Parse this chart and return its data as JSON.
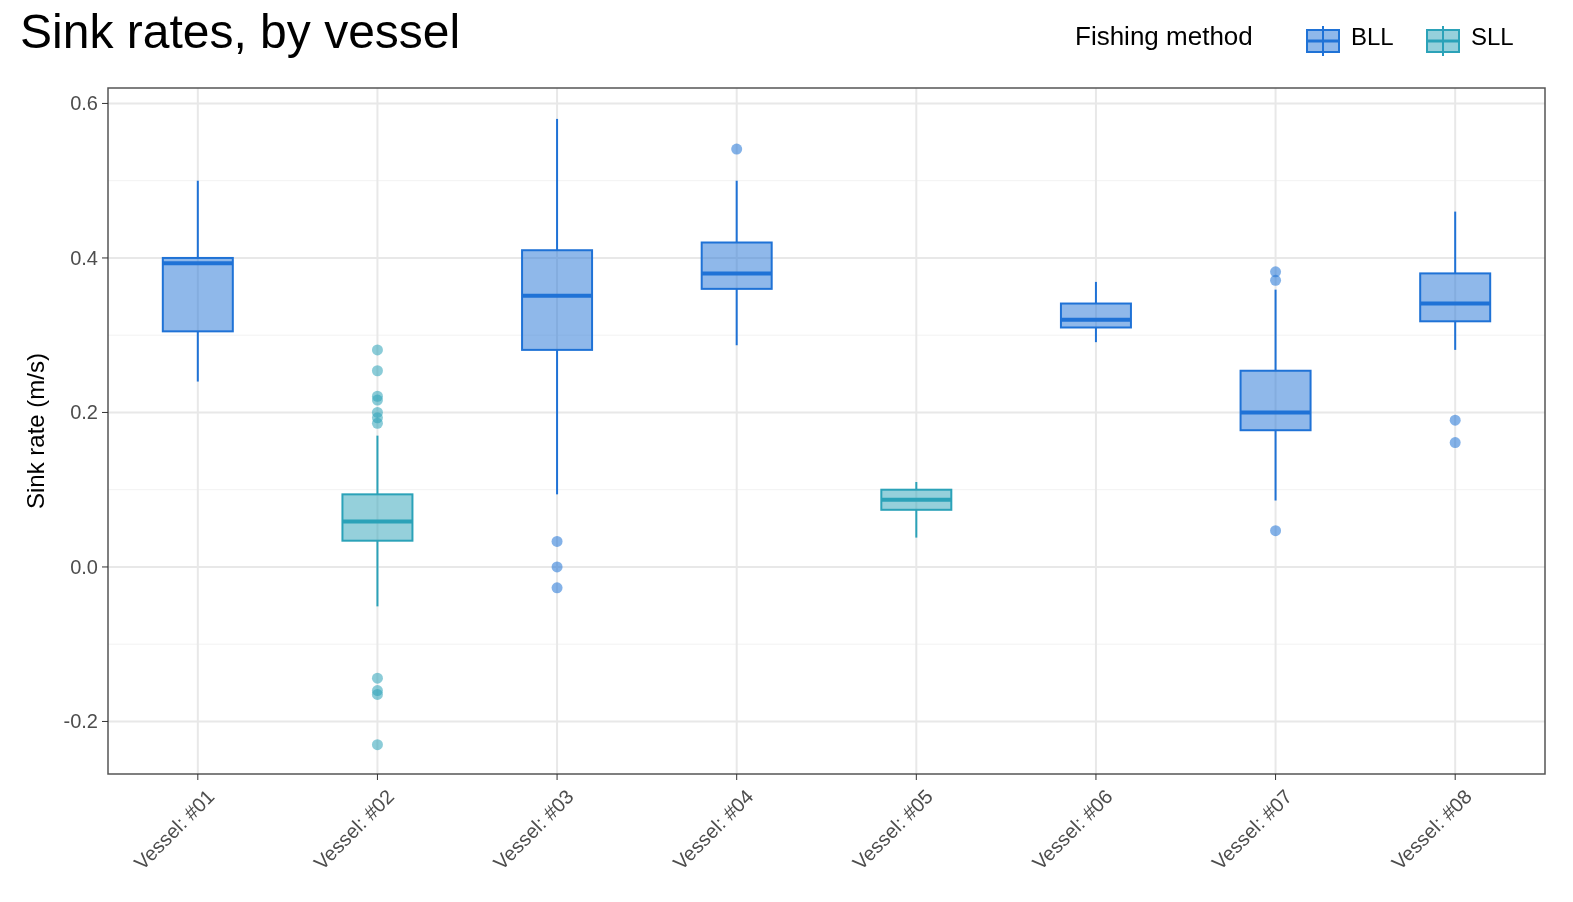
{
  "chart_data": {
    "type": "box",
    "title": "Sink rates, by vessel",
    "ylabel": "Sink rate (m/s)",
    "legend_title": "Fishing method",
    "legend": "top right",
    "grid": true,
    "categories": [
      "Vessel: #01",
      "Vessel: #02",
      "Vessel: #03",
      "Vessel: #04",
      "Vessel: #05",
      "Vessel: #06",
      "Vessel: #07",
      "Vessel: #08"
    ],
    "ylim": [
      -0.268,
      0.62
    ],
    "yticks": [
      {
        "value": -0.2,
        "label": "-0.2"
      },
      {
        "value": 0,
        "label": "0.0"
      },
      {
        "value": 0.2,
        "label": "0.2"
      },
      {
        "value": 0.4,
        "label": "0.4"
      },
      {
        "value": 0.6,
        "label": "0.6"
      }
    ],
    "series": [
      {
        "name": "BLL",
        "color": "#1f72d6",
        "boxes": [
          {
            "low": 0.24,
            "q1": 0.305,
            "median": 0.393,
            "q3": 0.4,
            "high": 0.5
          },
          null,
          {
            "low": 0.094,
            "q1": 0.281,
            "median": 0.351,
            "q3": 0.41,
            "high": 0.58,
            "outliers": [
              0.033,
              0,
              -0.027
            ]
          },
          {
            "low": 0.287,
            "q1": 0.36,
            "median": 0.38,
            "q3": 0.42,
            "high": 0.5,
            "outliers": [
              0.541
            ]
          },
          null,
          {
            "low": 0.291,
            "q1": 0.31,
            "median": 0.32,
            "q3": 0.341,
            "high": 0.369
          },
          {
            "low": 0.086,
            "q1": 0.177,
            "median": 0.2,
            "q3": 0.254,
            "high": 0.359,
            "outliers": [
              0.382,
              0.371,
              0.047
            ]
          },
          {
            "low": 0.281,
            "q1": 0.318,
            "median": 0.341,
            "q3": 0.38,
            "high": 0.46,
            "outliers": [
              0.19,
              0.161
            ]
          }
        ]
      },
      {
        "name": "SLL",
        "color": "#2ba2b8",
        "boxes": [
          null,
          {
            "low": -0.051,
            "q1": 0.034,
            "median": 0.059,
            "q3": 0.094,
            "high": 0.17,
            "outliers": [
              0.281,
              0.254,
              0.221,
              0.216,
              0.2,
              0.193,
              0.186,
              -0.144,
              -0.16,
              -0.165,
              -0.23
            ]
          },
          null,
          null,
          {
            "low": 0.038,
            "q1": 0.074,
            "median": 0.087,
            "q3": 0.1,
            "high": 0.11
          },
          null,
          null,
          null
        ]
      }
    ]
  }
}
